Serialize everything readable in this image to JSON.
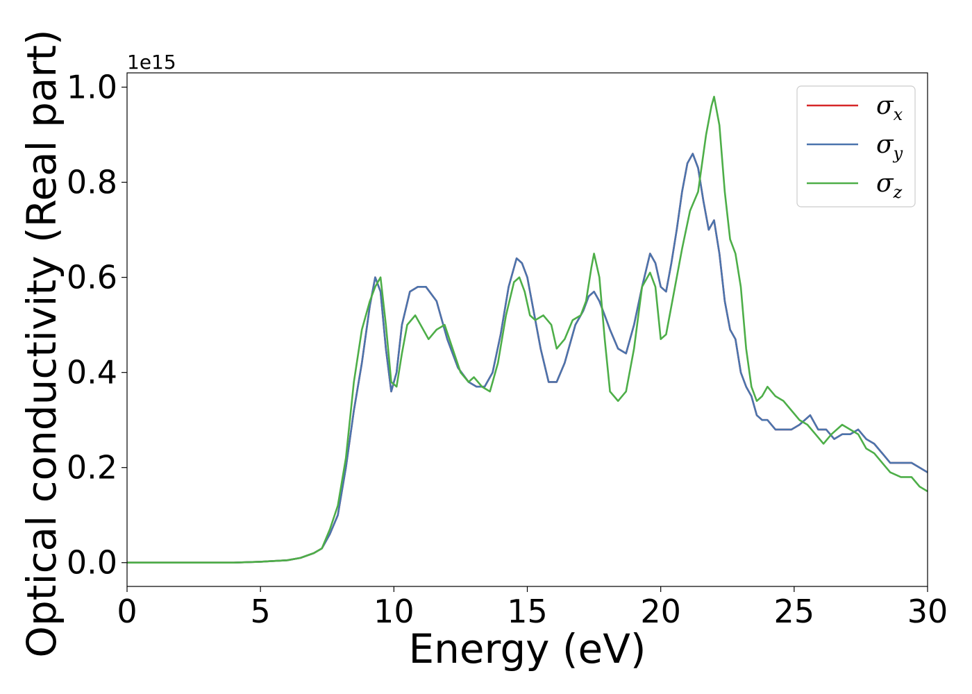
{
  "chart_data": {
    "type": "line",
    "xlabel": "Energy (eV)",
    "ylabel": "Optical conductivity (Real part)",
    "y_offset_text": "1e15",
    "xlim": [
      0,
      30
    ],
    "ylim": [
      -0.05,
      1.03
    ],
    "x_ticks": [
      0,
      5,
      10,
      15,
      20,
      25,
      30
    ],
    "x_tick_labels": [
      "0",
      "5",
      "10",
      "15",
      "20",
      "25",
      "30"
    ],
    "y_ticks": [
      0.0,
      0.2,
      0.4,
      0.6,
      0.8,
      1.0
    ],
    "y_tick_labels": [
      "0.0",
      "0.2",
      "0.4",
      "0.6",
      "0.8",
      "1.0"
    ],
    "grid": false,
    "legend_position": "top-right",
    "series": [
      {
        "name": "σx",
        "symbol": "σ",
        "subscript": "x",
        "color": "#d62728",
        "x": [
          0,
          2,
          4,
          5,
          6,
          6.5,
          7,
          7.3,
          7.6,
          7.9,
          8.2,
          8.5,
          8.8,
          9.1,
          9.3,
          9.5,
          9.7,
          9.9,
          10.1,
          10.3,
          10.6,
          10.9,
          11.2,
          11.6,
          12.0,
          12.4,
          12.8,
          13.1,
          13.4,
          13.7,
          14.0,
          14.3,
          14.6,
          14.8,
          15.0,
          15.2,
          15.5,
          15.8,
          16.1,
          16.4,
          16.8,
          17.1,
          17.3,
          17.5,
          17.7,
          17.9,
          18.1,
          18.4,
          18.7,
          19.0,
          19.3,
          19.6,
          19.8,
          20.0,
          20.2,
          20.4,
          20.6,
          20.8,
          21.0,
          21.2,
          21.4,
          21.6,
          21.8,
          22.0,
          22.2,
          22.4,
          22.6,
          22.8,
          23.0,
          23.2,
          23.4,
          23.6,
          23.8,
          24.0,
          24.3,
          24.6,
          24.9,
          25.2,
          25.6,
          25.9,
          26.2,
          26.5,
          26.8,
          27.1,
          27.4,
          27.7,
          28.0,
          28.3,
          28.6,
          29.0,
          29.4,
          29.7,
          30.0
        ],
        "y": [
          0.0,
          0.0,
          0.0,
          0.002,
          0.005,
          0.01,
          0.02,
          0.03,
          0.06,
          0.1,
          0.2,
          0.32,
          0.42,
          0.54,
          0.6,
          0.57,
          0.45,
          0.36,
          0.4,
          0.5,
          0.57,
          0.58,
          0.58,
          0.55,
          0.47,
          0.41,
          0.38,
          0.37,
          0.37,
          0.4,
          0.48,
          0.58,
          0.64,
          0.63,
          0.6,
          0.54,
          0.45,
          0.38,
          0.38,
          0.42,
          0.5,
          0.53,
          0.56,
          0.57,
          0.55,
          0.52,
          0.49,
          0.45,
          0.44,
          0.5,
          0.58,
          0.65,
          0.63,
          0.58,
          0.57,
          0.63,
          0.7,
          0.78,
          0.84,
          0.86,
          0.83,
          0.76,
          0.7,
          0.72,
          0.65,
          0.55,
          0.49,
          0.47,
          0.4,
          0.37,
          0.35,
          0.31,
          0.3,
          0.3,
          0.28,
          0.28,
          0.28,
          0.29,
          0.31,
          0.28,
          0.28,
          0.26,
          0.27,
          0.27,
          0.28,
          0.26,
          0.25,
          0.23,
          0.21,
          0.21,
          0.21,
          0.2,
          0.19
        ]
      },
      {
        "name": "σy",
        "symbol": "σ",
        "subscript": "y",
        "color": "#4a74ad",
        "x": [
          0,
          2,
          4,
          5,
          6,
          6.5,
          7,
          7.3,
          7.6,
          7.9,
          8.2,
          8.5,
          8.8,
          9.1,
          9.3,
          9.5,
          9.7,
          9.9,
          10.1,
          10.3,
          10.6,
          10.9,
          11.2,
          11.6,
          12.0,
          12.4,
          12.8,
          13.1,
          13.4,
          13.7,
          14.0,
          14.3,
          14.6,
          14.8,
          15.0,
          15.2,
          15.5,
          15.8,
          16.1,
          16.4,
          16.8,
          17.1,
          17.3,
          17.5,
          17.7,
          17.9,
          18.1,
          18.4,
          18.7,
          19.0,
          19.3,
          19.6,
          19.8,
          20.0,
          20.2,
          20.4,
          20.6,
          20.8,
          21.0,
          21.2,
          21.4,
          21.6,
          21.8,
          22.0,
          22.2,
          22.4,
          22.6,
          22.8,
          23.0,
          23.2,
          23.4,
          23.6,
          23.8,
          24.0,
          24.3,
          24.6,
          24.9,
          25.2,
          25.6,
          25.9,
          26.2,
          26.5,
          26.8,
          27.1,
          27.4,
          27.7,
          28.0,
          28.3,
          28.6,
          29.0,
          29.4,
          29.7,
          30.0
        ],
        "y": [
          0.0,
          0.0,
          0.0,
          0.002,
          0.005,
          0.01,
          0.02,
          0.03,
          0.06,
          0.1,
          0.2,
          0.32,
          0.42,
          0.54,
          0.6,
          0.57,
          0.45,
          0.36,
          0.4,
          0.5,
          0.57,
          0.58,
          0.58,
          0.55,
          0.47,
          0.41,
          0.38,
          0.37,
          0.37,
          0.4,
          0.48,
          0.58,
          0.64,
          0.63,
          0.6,
          0.54,
          0.45,
          0.38,
          0.38,
          0.42,
          0.5,
          0.53,
          0.56,
          0.57,
          0.55,
          0.52,
          0.49,
          0.45,
          0.44,
          0.5,
          0.58,
          0.65,
          0.63,
          0.58,
          0.57,
          0.63,
          0.7,
          0.78,
          0.84,
          0.86,
          0.83,
          0.76,
          0.7,
          0.72,
          0.65,
          0.55,
          0.49,
          0.47,
          0.4,
          0.37,
          0.35,
          0.31,
          0.3,
          0.3,
          0.28,
          0.28,
          0.28,
          0.29,
          0.31,
          0.28,
          0.28,
          0.26,
          0.27,
          0.27,
          0.28,
          0.26,
          0.25,
          0.23,
          0.21,
          0.21,
          0.21,
          0.2,
          0.19
        ]
      },
      {
        "name": "σz",
        "symbol": "σ",
        "subscript": "z",
        "color": "#4dae48",
        "x": [
          0,
          2,
          4,
          5,
          6,
          6.5,
          7,
          7.3,
          7.6,
          7.9,
          8.2,
          8.5,
          8.8,
          9.1,
          9.3,
          9.5,
          9.7,
          9.9,
          10.1,
          10.3,
          10.5,
          10.8,
          11.0,
          11.3,
          11.6,
          11.9,
          12.2,
          12.5,
          12.8,
          13.0,
          13.3,
          13.6,
          13.9,
          14.2,
          14.5,
          14.7,
          14.9,
          15.1,
          15.3,
          15.6,
          15.9,
          16.1,
          16.4,
          16.7,
          17.0,
          17.2,
          17.4,
          17.5,
          17.7,
          17.9,
          18.1,
          18.4,
          18.7,
          19.0,
          19.3,
          19.6,
          19.8,
          20.0,
          20.2,
          20.5,
          20.8,
          21.1,
          21.4,
          21.7,
          21.9,
          22.0,
          22.2,
          22.4,
          22.6,
          22.8,
          23.0,
          23.2,
          23.4,
          23.6,
          23.8,
          24.0,
          24.3,
          24.6,
          24.9,
          25.2,
          25.5,
          25.8,
          26.1,
          26.4,
          26.8,
          27.1,
          27.4,
          27.7,
          28.0,
          28.3,
          28.6,
          29.0,
          29.4,
          29.7,
          30.0
        ],
        "y": [
          0.0,
          0.0,
          0.0,
          0.002,
          0.005,
          0.01,
          0.02,
          0.03,
          0.07,
          0.12,
          0.22,
          0.38,
          0.49,
          0.55,
          0.58,
          0.6,
          0.5,
          0.38,
          0.37,
          0.44,
          0.5,
          0.52,
          0.5,
          0.47,
          0.49,
          0.5,
          0.45,
          0.4,
          0.38,
          0.39,
          0.37,
          0.36,
          0.42,
          0.52,
          0.59,
          0.6,
          0.57,
          0.52,
          0.51,
          0.52,
          0.5,
          0.45,
          0.47,
          0.51,
          0.52,
          0.55,
          0.62,
          0.65,
          0.6,
          0.47,
          0.36,
          0.34,
          0.36,
          0.45,
          0.58,
          0.61,
          0.58,
          0.47,
          0.48,
          0.57,
          0.66,
          0.74,
          0.78,
          0.9,
          0.96,
          0.98,
          0.92,
          0.78,
          0.68,
          0.65,
          0.58,
          0.45,
          0.37,
          0.34,
          0.35,
          0.37,
          0.35,
          0.34,
          0.32,
          0.3,
          0.29,
          0.27,
          0.25,
          0.27,
          0.29,
          0.28,
          0.27,
          0.24,
          0.23,
          0.21,
          0.19,
          0.18,
          0.18,
          0.16,
          0.15
        ]
      }
    ]
  }
}
